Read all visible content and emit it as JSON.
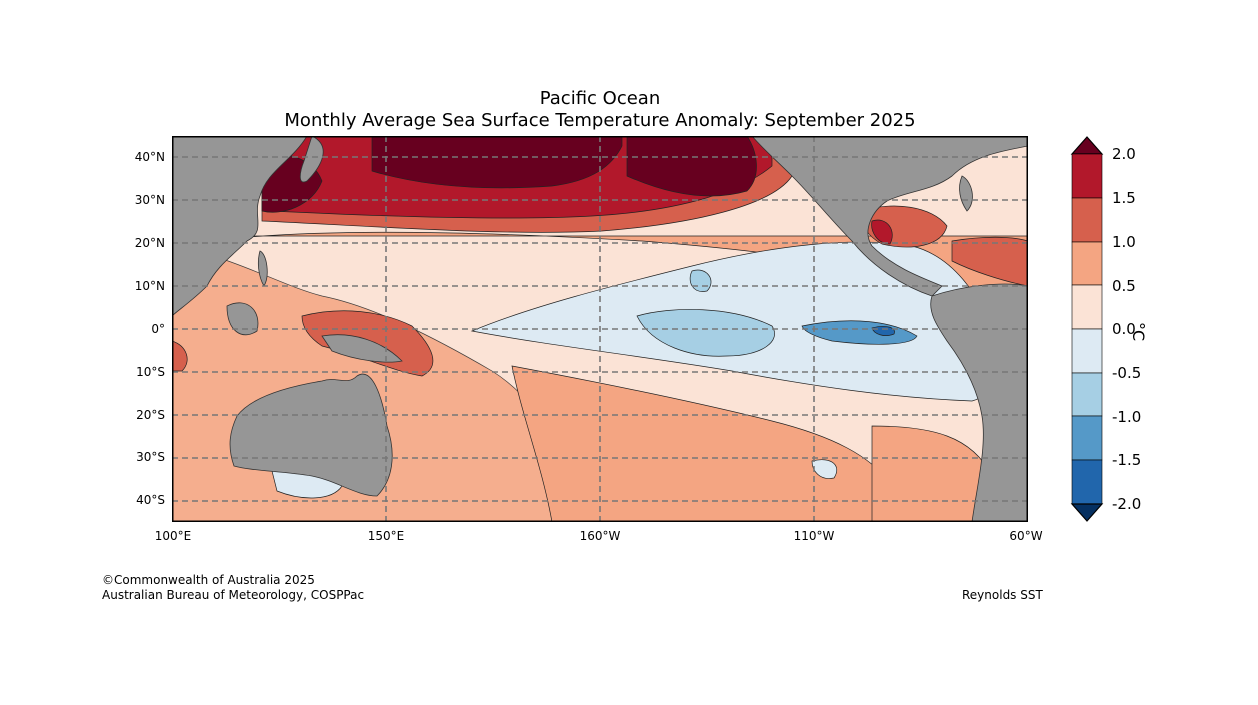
{
  "title_line1": "Pacific Ocean",
  "title_line2": "Monthly Average Sea Surface Temperature Anomaly: September 2025",
  "lat_labels": [
    "40°N",
    "30°N",
    "20°N",
    "10°N",
    "0°",
    "10°S",
    "20°S",
    "30°S",
    "40°S"
  ],
  "lon_labels": [
    "100°E",
    "150°E",
    "160°W",
    "110°W",
    "60°W"
  ],
  "colorbar": {
    "ticks": [
      "2.0",
      "1.5",
      "1.0",
      "0.5",
      "0.0",
      "-0.5",
      "-1.0",
      "-1.5",
      "-2.0"
    ],
    "unit": "°C",
    "colors": [
      "#67001f",
      "#b2182b",
      "#d6604d",
      "#f4a582",
      "#fbe3d6",
      "#ddeaf3",
      "#a6cfe4",
      "#5599c8",
      "#2166ac",
      "#053061"
    ]
  },
  "credit_line1": "©Commonwealth of Australia 2025",
  "credit_line2": "Australian Bureau of Meteorology, COSPPac",
  "source": "Reynolds SST",
  "land_color": "#969696"
}
